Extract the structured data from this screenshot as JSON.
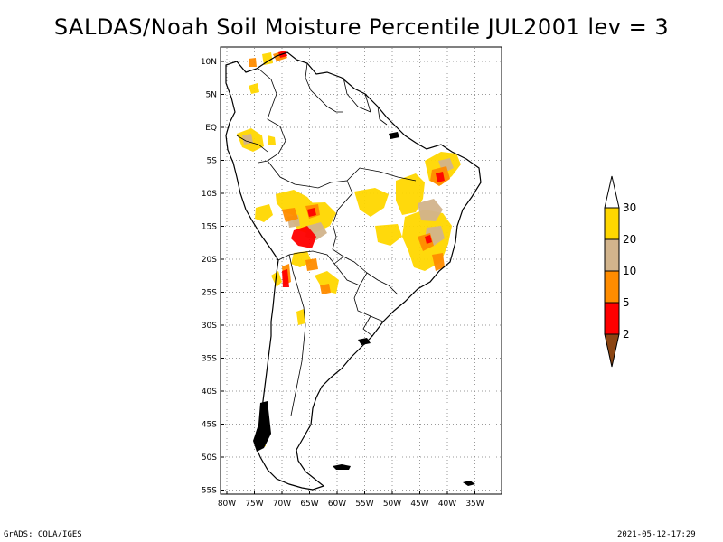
{
  "title": "SALDAS/Noah Soil Moisture Percentile JUL2001 lev = 3",
  "footer_left": "GrADS: COLA/IGES",
  "footer_right": "2021-05-12-17:29",
  "map": {
    "lon_range": [
      -81,
      -31
    ],
    "lat_range": [
      -56,
      12
    ],
    "lat_ticks": [
      "10N",
      "5N",
      "EQ",
      "5S",
      "10S",
      "15S",
      "20S",
      "25S",
      "30S",
      "35S",
      "40S",
      "45S",
      "50S",
      "55S"
    ],
    "lon_ticks": [
      "80W",
      "75W",
      "70W",
      "65W",
      "60W",
      "55W",
      "50W",
      "45W",
      "40W",
      "35W"
    ],
    "grid": "dotted"
  },
  "colorbar": {
    "labels": [
      "2",
      "5",
      "10",
      "20",
      "30"
    ],
    "colors": [
      "#8B4513",
      "#FF0000",
      "#FF8C00",
      "#D2B48C",
      "#FFD700",
      "#FFFFFF"
    ]
  },
  "colors": {
    "lt2": "#8B4513",
    "p2_5": "#FF0000",
    "p5_10": "#FF8C00",
    "p10_20": "#D2B48C",
    "p20_30": "#FFD700"
  }
}
